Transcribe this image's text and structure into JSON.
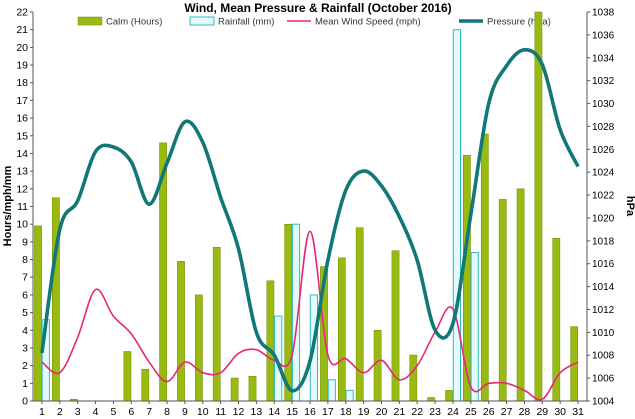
{
  "chart_data": {
    "type": "bar",
    "title": "Wind, Mean Pressure & Rainfall (October 2016)",
    "ylabel_left": "Hours/mph/mm",
    "ylabel_right": "hPa",
    "x": [
      "1",
      "2",
      "3",
      "4",
      "5",
      "6",
      "7",
      "8",
      "9",
      "10",
      "11",
      "12",
      "13",
      "14",
      "15",
      "16",
      "17",
      "18",
      "19",
      "20",
      "21",
      "22",
      "23",
      "24",
      "25",
      "26",
      "27",
      "28",
      "29",
      "30",
      "31"
    ],
    "ylim_left": [
      0,
      22
    ],
    "ylim_right": [
      1004,
      1038
    ],
    "yticks_left": [
      "0",
      "1",
      "2",
      "3",
      "4",
      "5",
      "6",
      "7",
      "8",
      "9",
      "10",
      "11",
      "12",
      "13",
      "14",
      "15",
      "16",
      "17",
      "18",
      "19",
      "20",
      "21",
      "22"
    ],
    "yticks_right": [
      "1004",
      "1006",
      "1008",
      "1010",
      "1012",
      "1014",
      "1016",
      "1018",
      "1020",
      "1022",
      "1024",
      "1026",
      "1028",
      "1030",
      "1032",
      "1034",
      "1036",
      "1038"
    ],
    "grid": false,
    "legend_position": "top",
    "series": [
      {
        "name": "Calm (Hours)",
        "kind": "bar",
        "axis": "left",
        "color": "#99bb11",
        "values": [
          9.9,
          11.5,
          0.1,
          0,
          0,
          2.8,
          1.8,
          14.6,
          7.9,
          6.0,
          8.7,
          1.3,
          1.4,
          6.8,
          10.0,
          0,
          7.6,
          8.1,
          9.8,
          4.0,
          8.5,
          2.6,
          0.2,
          0.6,
          13.9,
          15.1,
          11.4,
          12.0,
          22.0,
          9.2,
          4.2
        ]
      },
      {
        "name": "Rainfall (mm)",
        "kind": "bar",
        "axis": "left",
        "color": "#33bbbb",
        "values": [
          4.6,
          0,
          0,
          0,
          0,
          0,
          0,
          0,
          0,
          0,
          0,
          0,
          0,
          4.8,
          10.0,
          6.0,
          1.2,
          0.6,
          0,
          0,
          0,
          0,
          0,
          21.0,
          8.4,
          0,
          0,
          0,
          0,
          0,
          0
        ]
      },
      {
        "name": "Mean Wind Speed (mph)",
        "kind": "line",
        "axis": "left",
        "color": "#e8267a",
        "values": [
          2.2,
          1.6,
          3.6,
          6.3,
          4.8,
          3.8,
          2.2,
          1.1,
          2.2,
          1.6,
          1.6,
          2.7,
          2.9,
          2.3,
          2.6,
          9.6,
          2.6,
          2.4,
          1.6,
          2.3,
          1.2,
          2.0,
          3.9,
          5.2,
          0.8,
          1.0,
          1.0,
          0.6,
          0.1,
          1.6,
          2.2
        ]
      },
      {
        "name": "Pressure (hPa)",
        "kind": "line",
        "axis": "right",
        "color": "#117777",
        "values": [
          1008.2,
          1019.0,
          1021.5,
          1025.8,
          1026.2,
          1024.9,
          1021.2,
          1024.8,
          1028.4,
          1026.6,
          1021.8,
          1017.3,
          1010.0,
          1008.0,
          1004.9,
          1007.5,
          1016.3,
          1022.4,
          1024.1,
          1022.8,
          1020.1,
          1016.3,
          1010.2,
          1010.8,
          1020.3,
          1030.0,
          1033.3,
          1034.7,
          1033.4,
          1027.7,
          1024.5
        ]
      }
    ]
  }
}
